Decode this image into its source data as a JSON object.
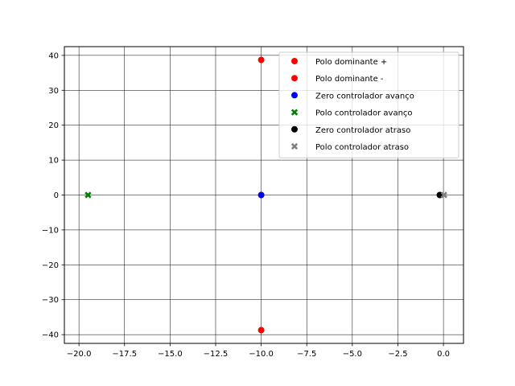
{
  "chart_data": {
    "type": "scatter",
    "title": "",
    "xlabel": "",
    "ylabel": "",
    "xlim": [
      -20.8,
      1.1
    ],
    "ylim": [
      -42.5,
      42.5
    ],
    "xticks": [
      -20.0,
      -17.5,
      -15.0,
      -12.5,
      -10.0,
      -7.5,
      -5.0,
      -2.5,
      0.0
    ],
    "xtick_labels": [
      "−20.0",
      "−17.5",
      "−15.0",
      "−12.5",
      "−10.0",
      "−7.5",
      "−5.0",
      "−2.5",
      "0.0"
    ],
    "yticks": [
      -40,
      -30,
      -20,
      -10,
      0,
      10,
      20,
      30,
      40
    ],
    "ytick_labels": [
      "−40",
      "−30",
      "−20",
      "−10",
      "0",
      "10",
      "20",
      "30",
      "40"
    ],
    "grid": true,
    "legend_position": "top-right",
    "series": [
      {
        "name": "Polo dominante +",
        "marker": "circle",
        "color": "#ff0000",
        "points": [
          [
            -10.0,
            38.7
          ]
        ]
      },
      {
        "name": "Polo dominante -",
        "marker": "circle",
        "color": "#ff0000",
        "points": [
          [
            -10.0,
            -38.7
          ]
        ]
      },
      {
        "name": "Zero controlador avanço",
        "marker": "circle",
        "color": "#0000ff",
        "points": [
          [
            -10.0,
            0.0
          ]
        ]
      },
      {
        "name": "Polo controlador avanço",
        "marker": "x",
        "color": "#008000",
        "points": [
          [
            -19.5,
            0.0
          ]
        ]
      },
      {
        "name": "Zero controlador atraso",
        "marker": "circle",
        "color": "#000000",
        "points": [
          [
            -0.2,
            0.0
          ]
        ]
      },
      {
        "name": "Polo controlador atraso",
        "marker": "x",
        "color": "#808080",
        "points": [
          [
            0.03,
            0.0
          ]
        ]
      }
    ]
  }
}
